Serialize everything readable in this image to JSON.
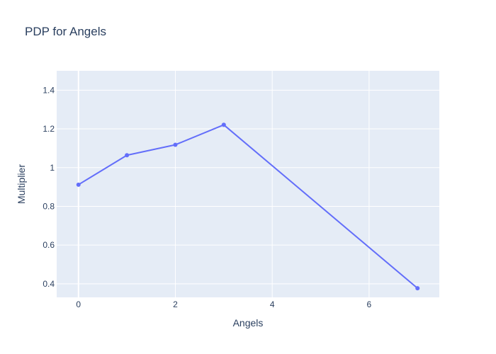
{
  "chart_data": {
    "type": "line",
    "title": "PDP for Angels",
    "xlabel": "Angels",
    "ylabel": "Multiplier",
    "x": [
      0,
      1,
      2,
      3,
      7
    ],
    "series": [
      {
        "values": [
          0.912,
          1.064,
          1.118,
          1.221,
          0.377
        ],
        "color": "#636efa"
      }
    ],
    "xlim": [
      -0.45,
      7.45
    ],
    "ylim": [
      0.33,
      1.5
    ],
    "x_ticks": [
      0,
      2,
      4,
      6
    ],
    "x_tick_labels": [
      "0",
      "2",
      "4",
      "6"
    ],
    "y_ticks": [
      0.4,
      0.6,
      0.8,
      1.0,
      1.2,
      1.4
    ],
    "y_tick_labels": [
      "0.4",
      "0.6",
      "0.8",
      "1",
      "1.2",
      "1.4"
    ],
    "grid": true,
    "markers": true,
    "plot_background": "#e5ecf6",
    "grid_color": "#ffffff"
  }
}
